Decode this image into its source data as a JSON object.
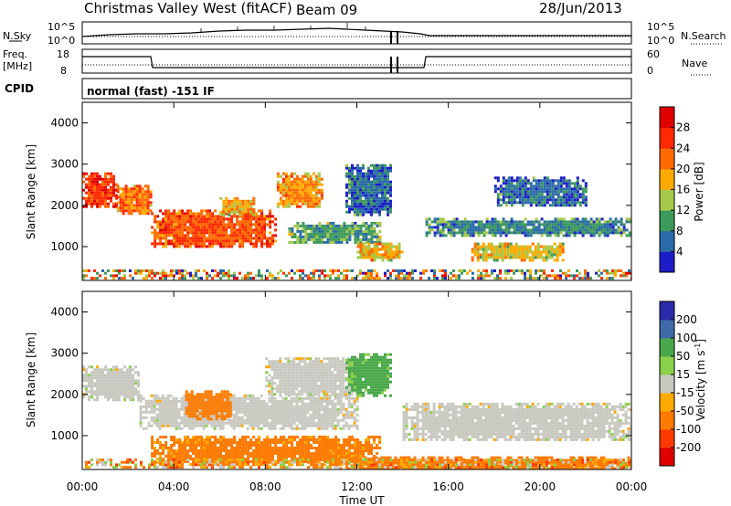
{
  "header": {
    "station": "Christmas Valley West (fitACF)",
    "beam": "Beam 09",
    "date": "28/Jun/2013"
  },
  "strip": {
    "nsky_label": "N.Sky",
    "nsearch_label": "N.Search",
    "nsky_ticks": [
      "10^5",
      "10^0"
    ],
    "nsearch_ticks": [
      "10^5",
      "10^0"
    ],
    "freq_label_1": "Freq.",
    "freq_label_2": "[MHz]",
    "freq_ticks": [
      "18",
      "8"
    ],
    "nave_label": "Nave",
    "nave_ticks": [
      "60",
      "0"
    ],
    "cpid_label": "CPID",
    "cpid_text": "normal (fast) -151 IF"
  },
  "chart_data": [
    {
      "type": "heatmap",
      "panel": "power",
      "ylabel": "Slant Range [km]",
      "yticks": [
        "4000",
        "3000",
        "2000",
        "1000"
      ],
      "ylim": [
        180,
        4500
      ],
      "colorbar_label": "Power [dB]",
      "colorbar_ticks": [
        "28",
        "24",
        "20",
        "16",
        "12",
        "8",
        "4"
      ],
      "colorbar_colors": [
        "#e00000",
        "#ff2a00",
        "#ff6a00",
        "#ffaa00",
        "#a6c84a",
        "#3c9a5a",
        "#2a6aa8",
        "#1c1cc8"
      ],
      "echo_regions": [
        {
          "time": [
            0.0,
            1.5
          ],
          "range": [
            2000,
            2800
          ],
          "level": 26
        },
        {
          "time": [
            1.5,
            3.0
          ],
          "range": [
            1800,
            2500
          ],
          "level": 22
        },
        {
          "time": [
            3.0,
            8.5
          ],
          "range": [
            1000,
            1900
          ],
          "level": 24
        },
        {
          "time": [
            6.0,
            7.5
          ],
          "range": [
            1800,
            2200
          ],
          "level": 18
        },
        {
          "time": [
            8.5,
            10.5
          ],
          "range": [
            2000,
            2800
          ],
          "level": 20
        },
        {
          "time": [
            9.0,
            13.0
          ],
          "range": [
            1100,
            1600
          ],
          "level": 10
        },
        {
          "time": [
            12.0,
            14.0
          ],
          "range": [
            700,
            1100
          ],
          "level": 18
        },
        {
          "time": [
            15.0,
            24.0
          ],
          "range": [
            1300,
            1700
          ],
          "level": 8
        },
        {
          "time": [
            17.0,
            21.0
          ],
          "range": [
            700,
            1100
          ],
          "level": 16
        },
        {
          "time": [
            11.5,
            13.5
          ],
          "range": [
            1800,
            3000
          ],
          "level": 6
        },
        {
          "time": [
            18.0,
            22.0
          ],
          "range": [
            2000,
            2700
          ],
          "level": 6
        }
      ]
    },
    {
      "type": "heatmap",
      "panel": "velocity",
      "xlabel": "Time UT",
      "xticks": [
        "00:00",
        "04:00",
        "08:00",
        "12:00",
        "16:00",
        "20:00",
        "00:00"
      ],
      "xlim": [
        0,
        24
      ],
      "ylabel": "Slant Range [km]",
      "yticks": [
        "4000",
        "3000",
        "2000",
        "1000"
      ],
      "ylim": [
        180,
        4500
      ],
      "colorbar_label_1": "Velocity",
      "colorbar_label_2": "[m s",
      "colorbar_label_sup": "-1",
      "colorbar_label_3": "]",
      "colorbar_ticks": [
        "200",
        "100",
        "50",
        "15",
        "-15",
        "-50",
        "-100",
        "-200"
      ],
      "colorbar_colors": [
        "#2a2aa8",
        "#3e6aa8",
        "#4aa84a",
        "#8ad04a",
        "#c8c8c0",
        "#ffaa00",
        "#ff7a00",
        "#ff3a00",
        "#e00000"
      ],
      "echo_regions": [
        {
          "time": [
            0.0,
            2.5
          ],
          "range": [
            1900,
            2700
          ],
          "velocity": 0
        },
        {
          "time": [
            2.5,
            12.0
          ],
          "range": [
            1200,
            2000
          ],
          "velocity": 0
        },
        {
          "time": [
            4.5,
            6.5
          ],
          "range": [
            1400,
            2100
          ],
          "velocity": -70
        },
        {
          "time": [
            3.0,
            13.0
          ],
          "range": [
            300,
            1000
          ],
          "velocity": -60
        },
        {
          "time": [
            8.0,
            12.0
          ],
          "range": [
            2000,
            2900
          ],
          "velocity": 0
        },
        {
          "time": [
            11.0,
            24.0
          ],
          "range": [
            180,
            500
          ],
          "velocity": -80
        },
        {
          "time": [
            14.0,
            24.0
          ],
          "range": [
            900,
            1800
          ],
          "velocity": 0
        },
        {
          "time": [
            11.5,
            13.5
          ],
          "range": [
            2000,
            3000
          ],
          "velocity": 60
        }
      ]
    }
  ]
}
